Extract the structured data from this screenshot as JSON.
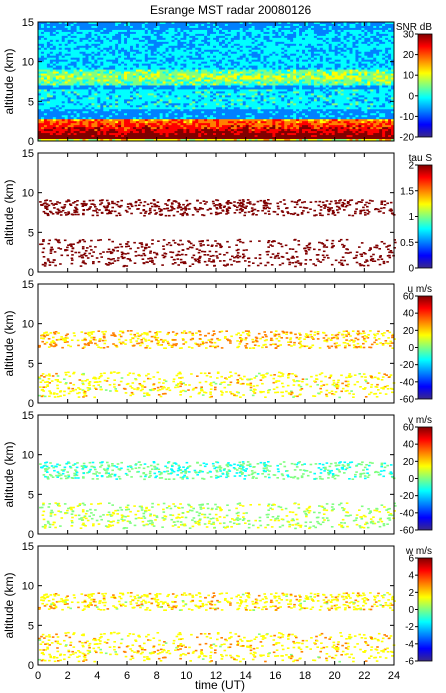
{
  "chart_data": {
    "type": "heatmap",
    "title": "Esrange MST radar 20080126",
    "xlabel": "time (UT)",
    "xlim": [
      0,
      24
    ],
    "xticks": [
      "0",
      "2",
      "4",
      "6",
      "8",
      "10",
      "12",
      "14",
      "16",
      "18",
      "20",
      "22",
      "24"
    ],
    "panels": [
      {
        "id": "snr",
        "ylabel": "altitude (km)",
        "ylim": [
          0,
          15
        ],
        "yticks": [
          "0",
          "5",
          "10",
          "15"
        ],
        "colorbar_label": "SNR dB",
        "clim": [
          -20,
          30
        ],
        "cticks": [
          "30",
          "20",
          "10",
          "0",
          "-10",
          "-20"
        ],
        "description_layers": [
          {
            "alt_range": [
              0.3,
              2.8
            ],
            "level": 25
          },
          {
            "alt_range": [
              7.0,
              9.0
            ],
            "level": 8
          }
        ]
      },
      {
        "id": "tau",
        "ylabel": "altitude (km)",
        "ylim": [
          0,
          15
        ],
        "yticks": [
          "0",
          "5",
          "10",
          "15"
        ],
        "colorbar_label": "tau S",
        "clim": [
          0,
          2
        ],
        "cticks": [
          "2",
          "1.5",
          "1",
          "0.5",
          "0"
        ],
        "layers": [
          {
            "alt_range": [
              7.2,
              9.2
            ],
            "value": 2
          },
          {
            "alt_range": [
              0.8,
              4.2
            ],
            "value": 2
          }
        ]
      },
      {
        "id": "u",
        "ylabel": "altitude (km)",
        "ylim": [
          0,
          15
        ],
        "yticks": [
          "0",
          "5",
          "10",
          "15"
        ],
        "colorbar_label": "u m/s",
        "clim": [
          -60,
          60
        ],
        "cticks": [
          "60",
          "40",
          "20",
          "0",
          "-20",
          "-40",
          "-60"
        ],
        "layers": [
          {
            "alt_range": [
              7.0,
              9.2
            ],
            "value": 20
          },
          {
            "alt_range": [
              0.8,
              4.0
            ],
            "value": 14
          }
        ]
      },
      {
        "id": "v",
        "ylabel": "altitude (km)",
        "ylim": [
          0,
          15
        ],
        "yticks": [
          "0",
          "5",
          "10",
          "15"
        ],
        "colorbar_label": "v m/s",
        "clim": [
          -60,
          60
        ],
        "cticks": [
          "60",
          "40",
          "20",
          "0",
          "-20",
          "-40",
          "-60"
        ],
        "layers": [
          {
            "alt_range": [
              7.0,
              9.2
            ],
            "value": -5
          },
          {
            "alt_range": [
              0.8,
              4.0
            ],
            "value": 5
          }
        ]
      },
      {
        "id": "w",
        "ylabel": "altitude (km)",
        "ylim": [
          0,
          15
        ],
        "yticks": [
          "0",
          "5",
          "10",
          "15"
        ],
        "colorbar_label": "w m/s",
        "clim": [
          -6,
          6
        ],
        "cticks": [
          "6",
          "4",
          "2",
          "0",
          "-2",
          "-4",
          "-6"
        ],
        "layers": [
          {
            "alt_range": [
              7.0,
              9.2
            ],
            "value": 1.5
          },
          {
            "alt_range": [
              0.5,
              4.2
            ],
            "value": 1.5
          }
        ]
      }
    ],
    "colormap": [
      "#1a1a8c",
      "#0000ff",
      "#0080ff",
      "#00ffff",
      "#80ff80",
      "#ffff00",
      "#ff8000",
      "#ff0000",
      "#800000"
    ]
  }
}
